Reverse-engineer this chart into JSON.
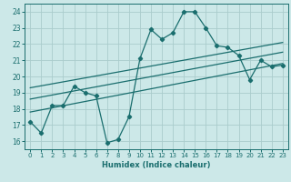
{
  "xlabel": "Humidex (Indice chaleur)",
  "xlim": [
    -0.5,
    23.5
  ],
  "ylim": [
    15.5,
    24.5
  ],
  "yticks": [
    16,
    17,
    18,
    19,
    20,
    21,
    22,
    23,
    24
  ],
  "xticks": [
    0,
    1,
    2,
    3,
    4,
    5,
    6,
    7,
    8,
    9,
    10,
    11,
    12,
    13,
    14,
    15,
    16,
    17,
    18,
    19,
    20,
    21,
    22,
    23
  ],
  "background_color": "#cce8e8",
  "grid_color": "#aacccc",
  "line_color": "#1a6e6e",
  "line1_x": [
    0,
    1,
    2,
    3,
    4,
    5,
    6,
    7,
    8,
    9,
    10,
    11,
    12,
    13,
    14,
    15,
    16,
    17,
    18,
    19,
    20,
    21,
    22,
    23
  ],
  "line1_y": [
    17.2,
    16.5,
    18.2,
    18.2,
    19.4,
    19.0,
    18.8,
    15.9,
    16.1,
    17.5,
    21.1,
    22.9,
    22.3,
    22.7,
    24.0,
    24.0,
    23.0,
    21.9,
    21.8,
    21.3,
    19.8,
    21.0,
    20.6,
    20.7
  ],
  "line2_x": [
    0,
    23
  ],
  "line2_y": [
    17.8,
    20.8
  ],
  "line3_x": [
    0,
    23
  ],
  "line3_y": [
    18.6,
    21.5
  ],
  "line4_x": [
    0,
    23
  ],
  "line4_y": [
    19.3,
    22.1
  ]
}
